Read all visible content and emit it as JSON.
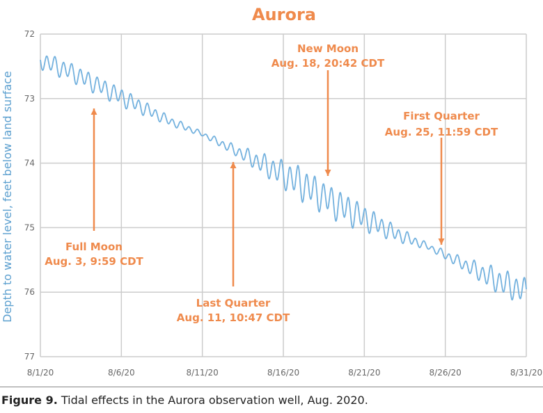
{
  "colors": {
    "title": "#ef8a4c",
    "line": "#73b1de",
    "annotation": "#ef8a4c",
    "grid": "#cccccc",
    "ylabel": "#5b9fcf"
  },
  "chart_data": {
    "type": "line",
    "title": "Aurora",
    "ylabel": "Depth to water level, feet below land surface",
    "xlabel": "",
    "y_inverted": true,
    "ylim": [
      72,
      77
    ],
    "xlim": [
      "2020-08-01",
      "2020-08-31"
    ],
    "y_ticks": [
      "72",
      "73",
      "74",
      "75",
      "76",
      "77"
    ],
    "x_ticks": [
      "8/1/20",
      "8/6/20",
      "8/11/20",
      "8/16/20",
      "8/21/20",
      "8/26/20",
      "8/31/20"
    ],
    "grid": true,
    "series": [
      {
        "trend": [
          [
            "2020-08-01",
            72.4
          ],
          [
            "2020-08-03",
            72.6
          ],
          [
            "2020-08-05",
            72.85
          ],
          [
            "2020-08-07",
            73.1
          ],
          [
            "2020-08-09",
            73.35
          ],
          [
            "2020-08-11",
            73.55
          ],
          [
            "2020-08-13",
            73.8
          ],
          [
            "2020-08-15",
            74.05
          ],
          [
            "2020-08-17",
            74.3
          ],
          [
            "2020-08-19",
            74.6
          ],
          [
            "2020-08-21",
            74.85
          ],
          [
            "2020-08-23",
            75.1
          ],
          [
            "2020-08-25",
            75.3
          ],
          [
            "2020-08-27",
            75.55
          ],
          [
            "2020-08-29",
            75.8
          ],
          [
            "2020-08-31",
            76.0
          ]
        ],
        "amplitude": [
          [
            "2020-08-01",
            0.12
          ],
          [
            "2020-08-06",
            0.12
          ],
          [
            "2020-08-09",
            0.06
          ],
          [
            "2020-08-11",
            0.03
          ],
          [
            "2020-08-13",
            0.07
          ],
          [
            "2020-08-17",
            0.22
          ],
          [
            "2020-08-20",
            0.2
          ],
          [
            "2020-08-23",
            0.1
          ],
          [
            "2020-08-25",
            0.04
          ],
          [
            "2020-08-27",
            0.08
          ],
          [
            "2020-08-29",
            0.16
          ],
          [
            "2020-08-31",
            0.18
          ]
        ]
      }
    ],
    "annotations": [
      {
        "label": "Full Moon",
        "date_text": "Aug. 3, 9:59 CDT",
        "x": "2020-08-03",
        "y": 73.1
      },
      {
        "label": "Last Quarter",
        "date_text": "Aug. 11, 10:47 CDT",
        "x": "2020-08-11",
        "y": 73.95
      },
      {
        "label": "New Moon",
        "date_text": "Aug. 18, 20:42 CDT",
        "x": "2020-08-18",
        "y": 74.2
      },
      {
        "label": "First Quarter",
        "date_text": "Aug. 25, 11:59 CDT",
        "x": "2020-08-25",
        "y": 75.3
      }
    ]
  },
  "caption": {
    "label": "Figure 9.",
    "text": " Tidal effects in the Aurora observation well, Aug. 2020."
  }
}
